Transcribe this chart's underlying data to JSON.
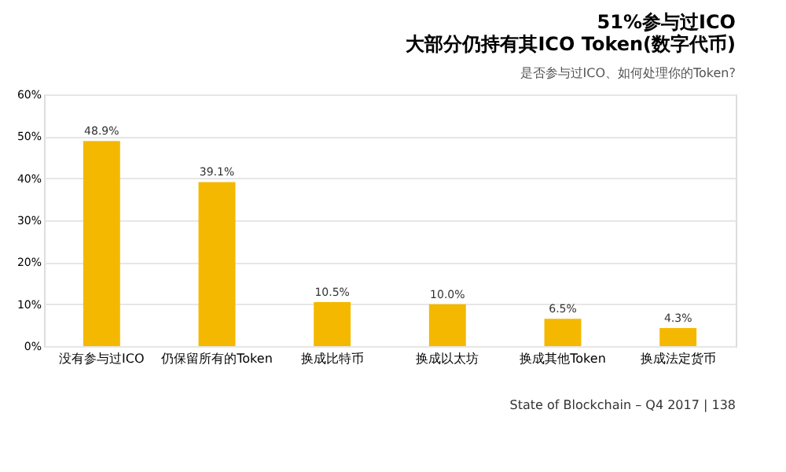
{
  "chart_data": {
    "type": "bar",
    "title": [
      "51%参与过ICO",
      "大部分仍持有其ICO Token(数字代币)"
    ],
    "subtitle": "是否参与过ICO、如何处理你的Token?",
    "categories": [
      "没有参与过ICO",
      "仍保留所有的Token",
      "换成比特币",
      "换成以太坊",
      "换成其他Token",
      "换成法定货币"
    ],
    "values": [
      48.9,
      39.1,
      10.5,
      10.0,
      6.5,
      4.3
    ],
    "value_labels": [
      "48.9%",
      "39.1%",
      "10.5%",
      "10.0%",
      "6.5%",
      "4.3%"
    ],
    "color": "#f5b800",
    "ylim": [
      0,
      60
    ],
    "yticks": [
      {
        "value": 0,
        "label": "0%"
      },
      {
        "value": 10,
        "label": "10%"
      },
      {
        "value": 20,
        "label": "20%"
      },
      {
        "value": 30,
        "label": "30%"
      },
      {
        "value": 40,
        "label": "40%"
      },
      {
        "value": 50,
        "label": "50%"
      },
      {
        "value": 60,
        "label": "60%"
      }
    ],
    "grid": "y",
    "annotations": [
      "State of Blockchain – Q4 2017 | 138"
    ]
  }
}
